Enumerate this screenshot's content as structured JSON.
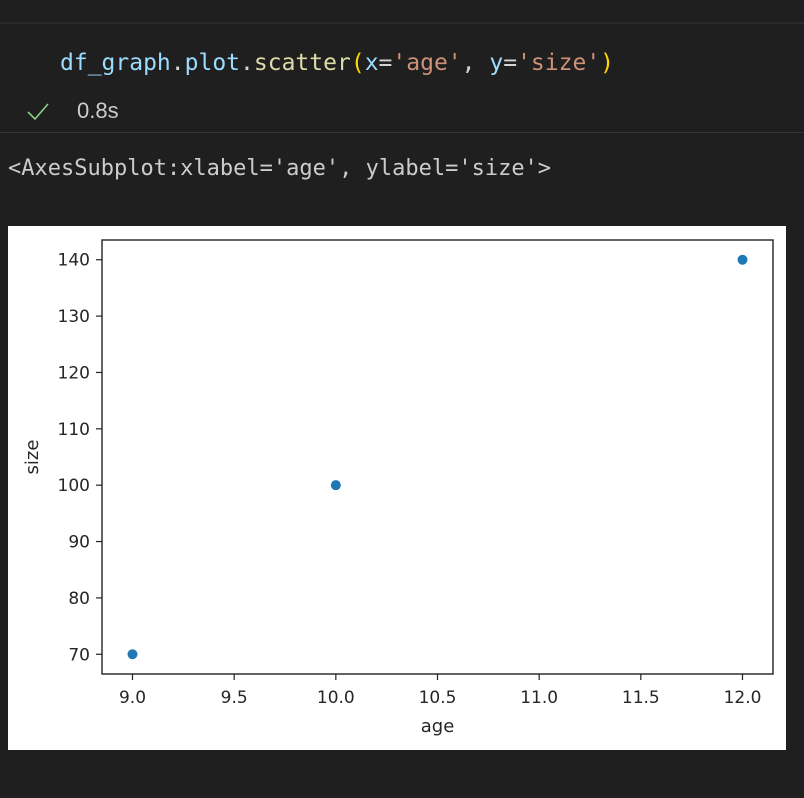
{
  "cell": {
    "code_tokens": [
      {
        "text": "df_graph",
        "cls": "tok-var"
      },
      {
        "text": ".",
        "cls": "tok-plain"
      },
      {
        "text": "plot",
        "cls": "tok-var"
      },
      {
        "text": ".",
        "cls": "tok-plain"
      },
      {
        "text": "scatter",
        "cls": "tok-fn"
      },
      {
        "text": "(",
        "cls": "tok-paren"
      },
      {
        "text": "x",
        "cls": "tok-param"
      },
      {
        "text": "=",
        "cls": "tok-plain"
      },
      {
        "text": "'age'",
        "cls": "tok-str"
      },
      {
        "text": ", ",
        "cls": "tok-plain"
      },
      {
        "text": "y",
        "cls": "tok-param"
      },
      {
        "text": "=",
        "cls": "tok-plain"
      },
      {
        "text": "'size'",
        "cls": "tok-str"
      },
      {
        "text": ")",
        "cls": "tok-paren"
      }
    ],
    "status_icon": "check-icon",
    "status_color": "#89d185",
    "exec_time": "0.8s"
  },
  "output": {
    "repr": "<AxesSubplot:xlabel='age', ylabel='size'>"
  },
  "chart_data": {
    "type": "scatter",
    "title": "",
    "xlabel": "age",
    "ylabel": "size",
    "x": [
      9.0,
      10.0,
      12.0
    ],
    "y": [
      70,
      100,
      140
    ],
    "xlim": [
      8.85,
      12.15
    ],
    "ylim": [
      66.5,
      143.5
    ],
    "xticks": [
      9.0,
      9.5,
      10.0,
      10.5,
      11.0,
      11.5,
      12.0
    ],
    "xtick_labels": [
      "9.0",
      "9.5",
      "10.0",
      "10.5",
      "11.0",
      "11.5",
      "12.0"
    ],
    "yticks": [
      70,
      80,
      90,
      100,
      110,
      120,
      130,
      140
    ],
    "ytick_labels": [
      "70",
      "80",
      "90",
      "100",
      "110",
      "120",
      "130",
      "140"
    ],
    "marker_color": "#1f77b4",
    "grid": false
  }
}
